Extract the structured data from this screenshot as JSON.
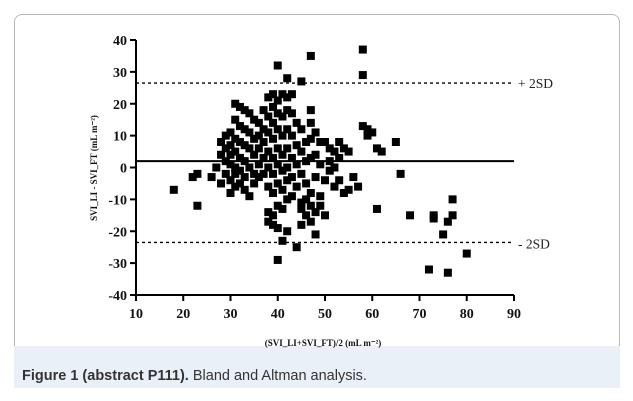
{
  "caption": {
    "label": "Figure 1 (abstract P111).",
    "text": "Bland and Altman analysis."
  },
  "chart_data": {
    "type": "scatter",
    "title": "",
    "xlabel": "(SVI_LI+SVI_FT)/2 (mL m⁻²)",
    "ylabel": "SVI_LI - SVI_FT (mL m⁻²)",
    "xlim": [
      10,
      90
    ],
    "ylim": [
      -40,
      40
    ],
    "x_ticks": [
      10,
      20,
      30,
      40,
      50,
      60,
      70,
      80,
      90
    ],
    "y_ticks": [
      -40,
      -30,
      -20,
      -10,
      0,
      10,
      20,
      30,
      40
    ],
    "grid": false,
    "reference_lines": [
      {
        "name": "mean",
        "y": 2,
        "style": "solid"
      },
      {
        "name": "upper",
        "label": "+ 2SD",
        "y": 26.5,
        "style": "dashed"
      },
      {
        "name": "lower",
        "label": "- 2SD",
        "y": -23.5,
        "style": "dashed"
      }
    ],
    "points": [
      [
        18,
        -7
      ],
      [
        22,
        -3
      ],
      [
        23,
        -2
      ],
      [
        23,
        -12
      ],
      [
        26,
        -3
      ],
      [
        27,
        0
      ],
      [
        28,
        8
      ],
      [
        28,
        4
      ],
      [
        28,
        -5
      ],
      [
        29,
        10
      ],
      [
        29,
        6
      ],
      [
        29,
        2
      ],
      [
        29,
        -2
      ],
      [
        30,
        11
      ],
      [
        30,
        7
      ],
      [
        30,
        4
      ],
      [
        30,
        1
      ],
      [
        30,
        -4
      ],
      [
        30,
        -8
      ],
      [
        31,
        20
      ],
      [
        31,
        15
      ],
      [
        31,
        9
      ],
      [
        31,
        5
      ],
      [
        31,
        0
      ],
      [
        31,
        -2
      ],
      [
        31,
        -6
      ],
      [
        32,
        19
      ],
      [
        32,
        13
      ],
      [
        32,
        8
      ],
      [
        32,
        3
      ],
      [
        32,
        -1
      ],
      [
        32,
        -5
      ],
      [
        33,
        18
      ],
      [
        33,
        12
      ],
      [
        33,
        7
      ],
      [
        33,
        2
      ],
      [
        33,
        -3
      ],
      [
        33,
        -7
      ],
      [
        34,
        17
      ],
      [
        34,
        11
      ],
      [
        34,
        6
      ],
      [
        34,
        0
      ],
      [
        34,
        -9
      ],
      [
        35,
        15
      ],
      [
        35,
        9
      ],
      [
        35,
        4
      ],
      [
        35,
        -2
      ],
      [
        35,
        -5
      ],
      [
        36,
        14
      ],
      [
        36,
        10
      ],
      [
        36,
        6
      ],
      [
        36,
        1
      ],
      [
        36,
        -3
      ],
      [
        37,
        18
      ],
      [
        37,
        12
      ],
      [
        37,
        8
      ],
      [
        37,
        3
      ],
      [
        37,
        -2
      ],
      [
        38,
        22
      ],
      [
        38,
        16
      ],
      [
        38,
        11
      ],
      [
        38,
        5
      ],
      [
        38,
        0
      ],
      [
        38,
        -6
      ],
      [
        38,
        -14
      ],
      [
        38,
        -17
      ],
      [
        39,
        23
      ],
      [
        39,
        19
      ],
      [
        39,
        14
      ],
      [
        39,
        9
      ],
      [
        39,
        3
      ],
      [
        39,
        -2
      ],
      [
        39,
        -8
      ],
      [
        39,
        -15
      ],
      [
        39,
        -18
      ],
      [
        40,
        21
      ],
      [
        40,
        17
      ],
      [
        40,
        12
      ],
      [
        40,
        6
      ],
      [
        40,
        1
      ],
      [
        40,
        -5
      ],
      [
        40,
        -12
      ],
      [
        40,
        -19
      ],
      [
        40,
        -29
      ],
      [
        40,
        32
      ],
      [
        41,
        23
      ],
      [
        41,
        16
      ],
      [
        41,
        10
      ],
      [
        41,
        4
      ],
      [
        41,
        -1
      ],
      [
        41,
        -7
      ],
      [
        41,
        -13
      ],
      [
        41,
        -23
      ],
      [
        42,
        28
      ],
      [
        42,
        22
      ],
      [
        42,
        18
      ],
      [
        42,
        12
      ],
      [
        42,
        6
      ],
      [
        42,
        0
      ],
      [
        42,
        -4
      ],
      [
        42,
        -10
      ],
      [
        42,
        -20
      ],
      [
        43,
        23
      ],
      [
        43,
        17
      ],
      [
        43,
        10
      ],
      [
        43,
        3
      ],
      [
        43,
        -3
      ],
      [
        43,
        -9
      ],
      [
        44,
        14
      ],
      [
        44,
        7
      ],
      [
        44,
        1
      ],
      [
        44,
        -6
      ],
      [
        44,
        -25
      ],
      [
        45,
        27
      ],
      [
        45,
        12
      ],
      [
        45,
        5
      ],
      [
        45,
        -2
      ],
      [
        45,
        -11
      ],
      [
        45,
        -13
      ],
      [
        45,
        -18
      ],
      [
        46,
        8
      ],
      [
        46,
        2
      ],
      [
        46,
        -5
      ],
      [
        46,
        -10
      ],
      [
        46,
        -15
      ],
      [
        47,
        35
      ],
      [
        47,
        18
      ],
      [
        47,
        14
      ],
      [
        47,
        9
      ],
      [
        47,
        3
      ],
      [
        47,
        -8
      ],
      [
        47,
        -12
      ],
      [
        47,
        -17
      ],
      [
        48,
        11
      ],
      [
        48,
        4
      ],
      [
        48,
        -3
      ],
      [
        48,
        -14
      ],
      [
        48,
        -21
      ],
      [
        49,
        8
      ],
      [
        49,
        1
      ],
      [
        49,
        -9
      ],
      [
        49,
        -12
      ],
      [
        50,
        8
      ],
      [
        50,
        -4
      ],
      [
        50,
        -15
      ],
      [
        51,
        6
      ],
      [
        51,
        2
      ],
      [
        51,
        -1
      ],
      [
        52,
        5
      ],
      [
        52,
        0
      ],
      [
        52,
        -6
      ],
      [
        53,
        3
      ],
      [
        53,
        8
      ],
      [
        53,
        -4
      ],
      [
        54,
        6
      ],
      [
        54,
        -8
      ],
      [
        55,
        5
      ],
      [
        55,
        -7
      ],
      [
        56,
        -3
      ],
      [
        57,
        -6
      ],
      [
        58,
        37
      ],
      [
        58,
        29
      ],
      [
        58,
        13
      ],
      [
        59,
        12
      ],
      [
        59,
        10
      ],
      [
        60,
        11
      ],
      [
        61,
        6
      ],
      [
        61,
        -13
      ],
      [
        62,
        5
      ],
      [
        65,
        8
      ],
      [
        66,
        -2
      ],
      [
        68,
        -15
      ],
      [
        72,
        -32
      ],
      [
        73,
        -15
      ],
      [
        73,
        -16
      ],
      [
        75,
        -21
      ],
      [
        76,
        -33
      ],
      [
        76,
        -17
      ],
      [
        77,
        -10
      ],
      [
        77,
        -15
      ],
      [
        80,
        -27
      ]
    ]
  }
}
